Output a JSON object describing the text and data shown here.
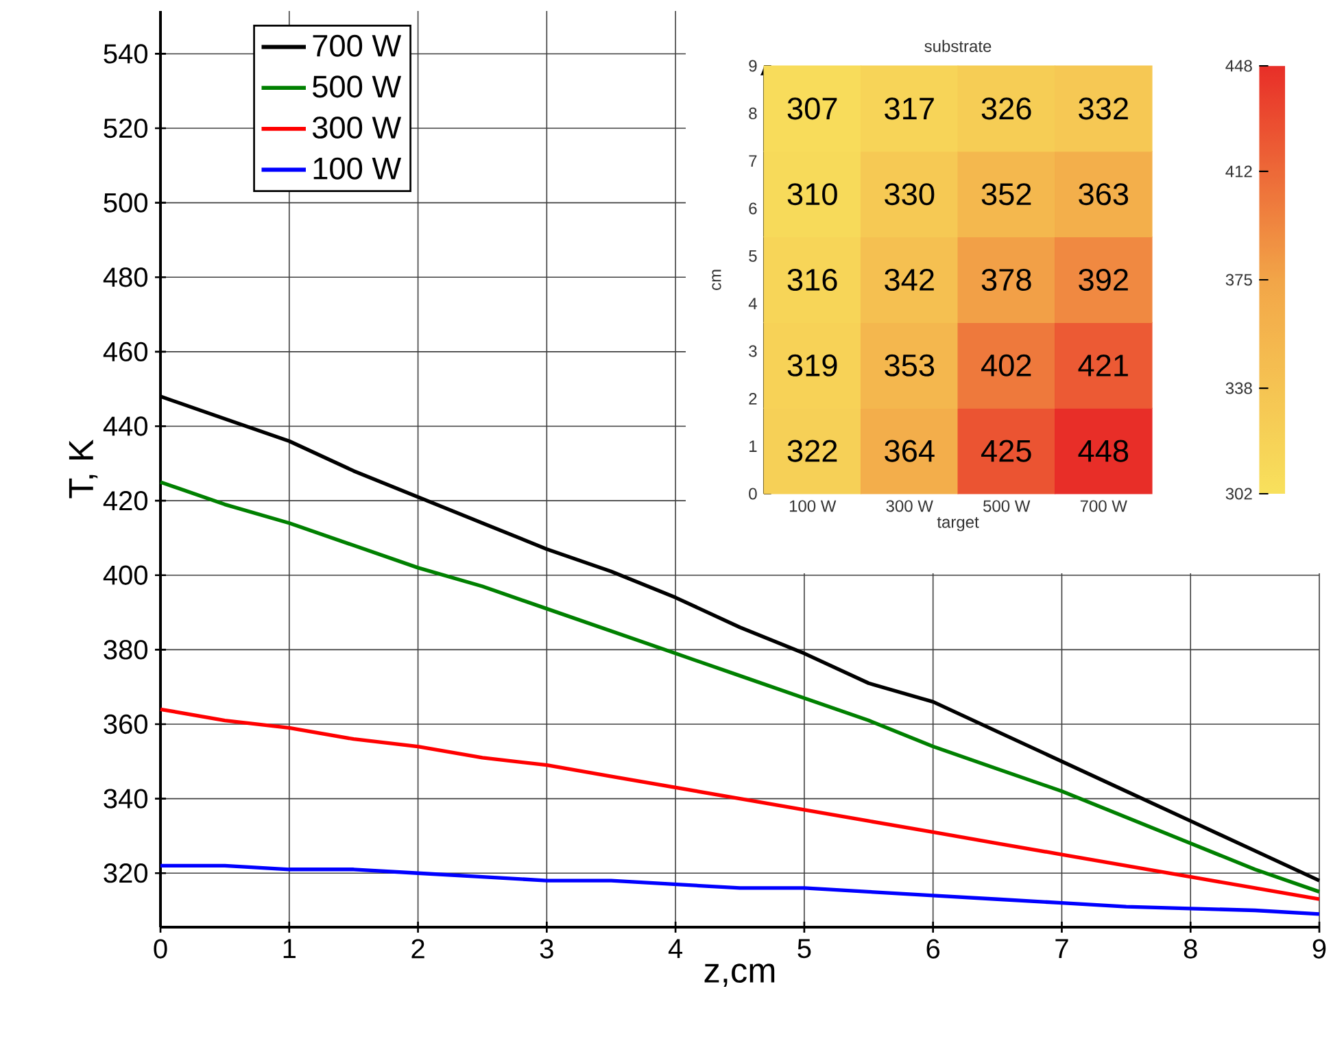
{
  "chart_data": [
    {
      "type": "line",
      "xlabel": "z,cm",
      "ylabel": "T, K",
      "x": [
        0,
        0.5,
        1,
        1.5,
        2,
        2.5,
        3,
        3.5,
        4,
        4.5,
        5,
        5.5,
        6,
        6.5,
        7,
        7.5,
        8,
        8.5,
        9
      ],
      "series": [
        {
          "name": "700 W",
          "color": "#000000",
          "values": [
            448,
            442,
            436,
            428,
            421,
            414,
            407,
            401,
            394,
            386,
            379,
            371,
            366,
            358,
            350,
            342,
            334,
            326,
            318
          ]
        },
        {
          "name": "500 W",
          "color": "#008000",
          "values": [
            425,
            419,
            414,
            408,
            402,
            397,
            391,
            385,
            379,
            373,
            367,
            361,
            354,
            348,
            342,
            335,
            328,
            321,
            315
          ]
        },
        {
          "name": "300 W",
          "color": "#ff0000",
          "values": [
            364,
            361,
            359,
            356,
            354,
            351,
            349,
            346,
            343,
            340,
            337,
            334,
            331,
            328,
            325,
            322,
            319,
            316,
            313
          ]
        },
        {
          "name": "100 W",
          "color": "#0000ff",
          "values": [
            322,
            322,
            321,
            321,
            320,
            319,
            318,
            318,
            317,
            316,
            316,
            315,
            314,
            313,
            312,
            311,
            310.5,
            310,
            309
          ]
        }
      ],
      "xlim": [
        0,
        9
      ],
      "ylim": [
        305.5,
        551.5
      ],
      "xticks": [
        0,
        1,
        2,
        3,
        4,
        5,
        6,
        7,
        8,
        9
      ],
      "yticks": [
        320,
        340,
        360,
        380,
        400,
        420,
        440,
        460,
        480,
        500,
        520,
        540
      ],
      "grid": true,
      "legend": "top left"
    },
    {
      "type": "heatmap",
      "title": "substrate",
      "xlabel": "target",
      "ylabel": "cm",
      "categories": [
        "100  W",
        "300 W",
        "500 W",
        "700 W"
      ],
      "ylim": [
        0,
        9
      ],
      "yticks": [
        0,
        1,
        2,
        3,
        4,
        5,
        6,
        7,
        8,
        9
      ],
      "cells": [
        [
          307,
          317,
          326,
          332
        ],
        [
          310,
          330,
          352,
          363
        ],
        [
          316,
          342,
          378,
          392
        ],
        [
          319,
          353,
          402,
          421
        ],
        [
          322,
          364,
          425,
          448
        ]
      ],
      "clim": [
        302,
        448
      ],
      "cticks": [
        302,
        338,
        375,
        412,
        448
      ],
      "data_labels": true
    }
  ]
}
